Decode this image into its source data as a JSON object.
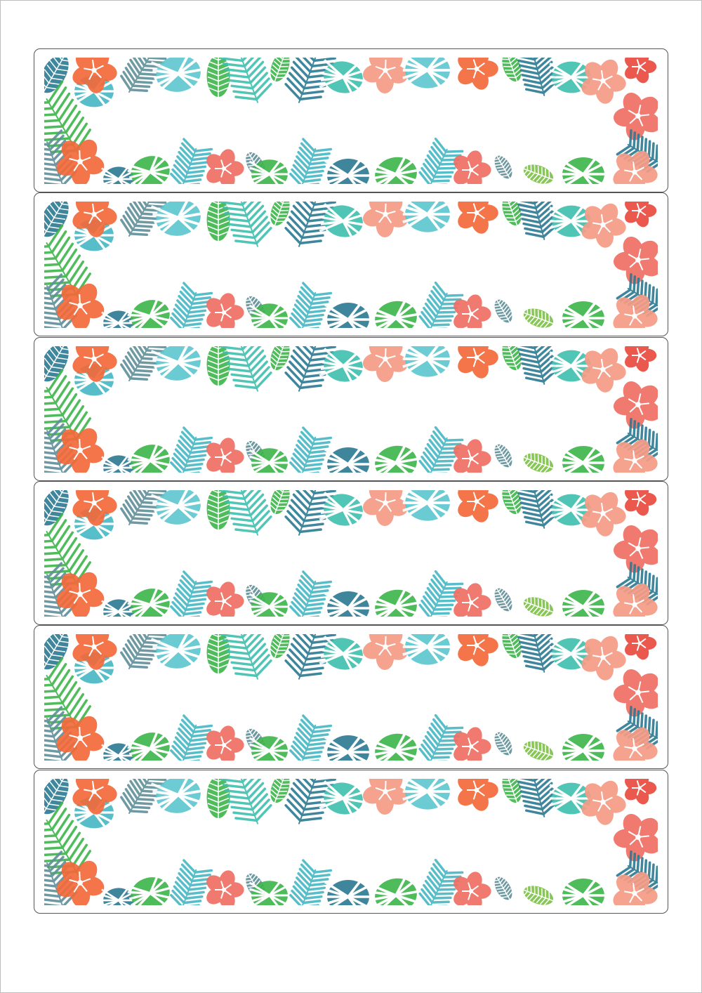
{
  "sheet": {
    "label_count": 6,
    "labels": [
      {
        "text": ""
      },
      {
        "text": ""
      },
      {
        "text": ""
      },
      {
        "text": ""
      },
      {
        "text": ""
      },
      {
        "text": ""
      }
    ]
  },
  "palette": {
    "orange": "#f26a3a",
    "coral": "#ef6f63",
    "pink": "#f59c86",
    "red": "#e94a3f",
    "teal": "#45b8c4",
    "light_teal": "#5cc6cf",
    "dark_teal": "#2b7a93",
    "sea_green": "#3fbfae",
    "green": "#3db54a",
    "lime": "#7cc245",
    "grey_teal": "#5f8f98"
  },
  "motifs": {
    "border_style": "tropical-hibiscus-monstera-palm",
    "icons": [
      "hibiscus-icon",
      "monstera-leaf-icon",
      "palm-frond-icon",
      "leaf-icon"
    ]
  }
}
